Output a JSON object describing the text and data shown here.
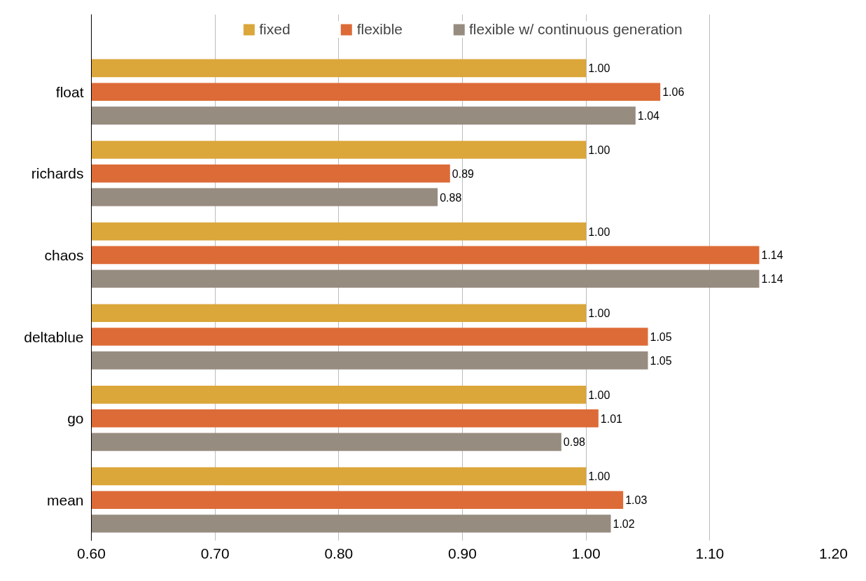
{
  "chart_data": {
    "type": "bar",
    "orientation": "horizontal",
    "categories": [
      "float",
      "richards",
      "chaos",
      "deltablue",
      "go",
      "mean"
    ],
    "series": [
      {
        "name": "fixed",
        "color": "#dba63a",
        "values": [
          1.0,
          1.0,
          1.0,
          1.0,
          1.0,
          1.0
        ],
        "value_labels": [
          "1.00",
          "1.00",
          "1.00",
          "1.00",
          "1.00",
          "1.00"
        ]
      },
      {
        "name": "flexible",
        "color": "#dd6b37",
        "values": [
          1.06,
          0.89,
          1.14,
          1.05,
          1.01,
          1.03
        ],
        "value_labels": [
          "1.06",
          "0.89",
          "1.14",
          "1.05",
          "1.01",
          "1.03"
        ]
      },
      {
        "name": "flexible w/ continuous generation",
        "color": "#978c80",
        "values": [
          1.04,
          0.88,
          1.14,
          1.05,
          0.98,
          1.02
        ],
        "value_labels": [
          "1.04",
          "0.88",
          "1.14",
          "1.05",
          "0.98",
          "1.02"
        ]
      }
    ],
    "xlim": [
      0.6,
      1.2
    ],
    "xticks": [
      {
        "value": 0.6,
        "label": "0.60"
      },
      {
        "value": 0.7,
        "label": "0.70"
      },
      {
        "value": 0.8,
        "label": "0.80"
      },
      {
        "value": 0.9,
        "label": "0.90"
      },
      {
        "value": 1.0,
        "label": "1.00"
      },
      {
        "value": 1.1,
        "label": "1.10"
      },
      {
        "value": 1.2,
        "label": "1.20"
      }
    ],
    "grid": "x",
    "legend": "top"
  }
}
